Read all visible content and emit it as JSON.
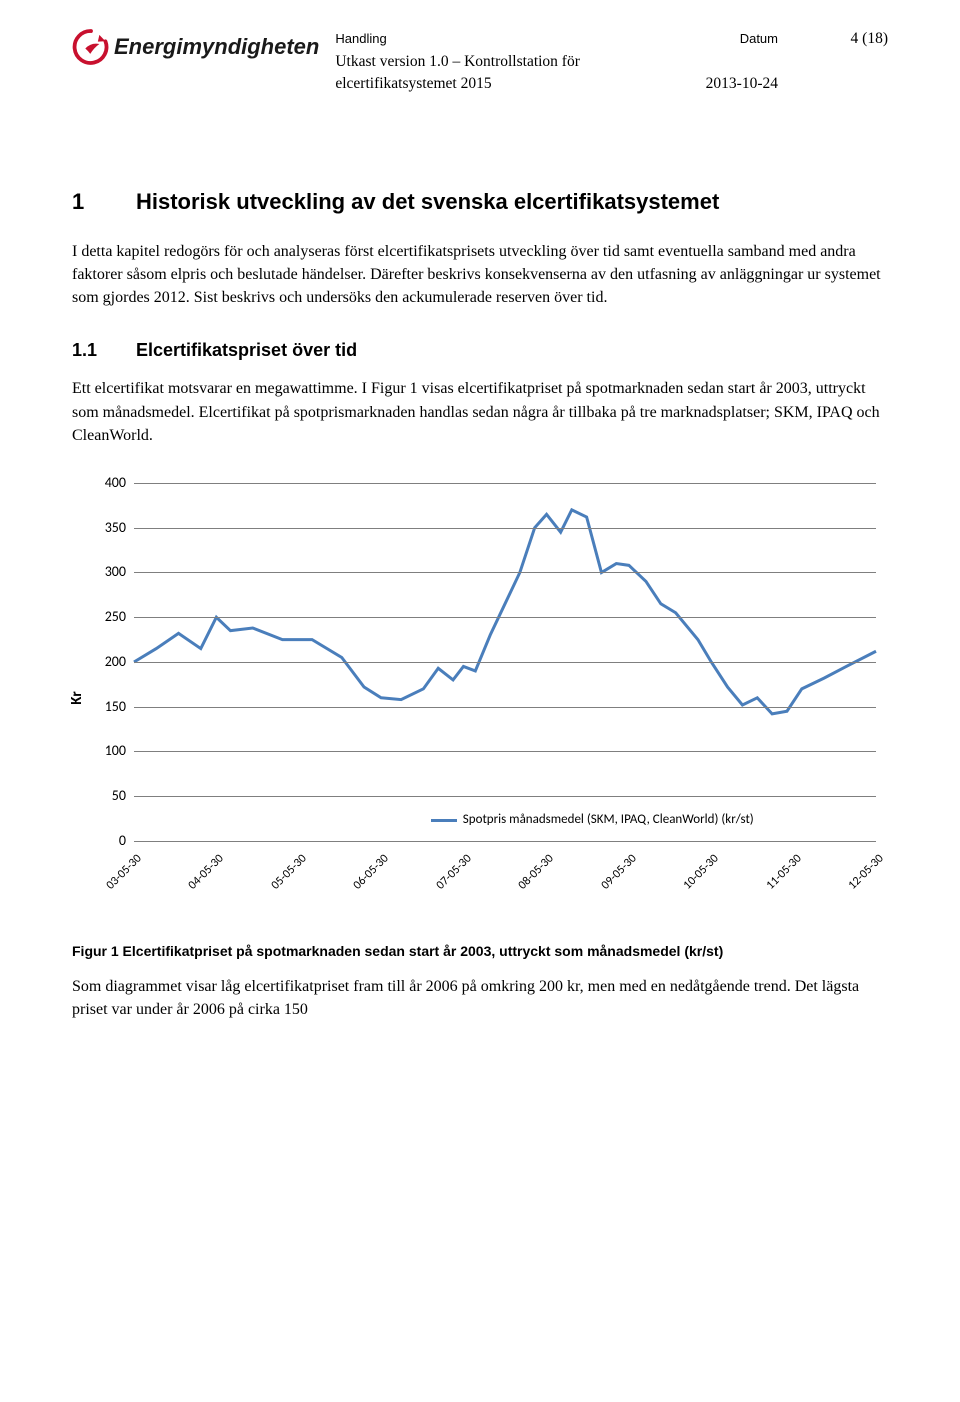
{
  "header": {
    "logo_text": "Energimyndigheten",
    "logo_color": "#c8102e",
    "handling_label": "Handling",
    "datum_label": "Datum",
    "title": "Utkast version 1.0 – Kontrollstation för",
    "subtitle": "elcertifikatsystemet 2015",
    "date": "2013-10-24",
    "page_num": "4 (18)"
  },
  "section1": {
    "num": "1",
    "title": "Historisk utveckling av det svenska elcertifikatsystemet",
    "p1": "I detta kapitel redogörs för och analyseras först elcertifikatsprisets utveckling över tid samt eventuella samband med andra faktorer såsom elpris och beslutade händelser. Därefter beskrivs konsekvenserna av den utfasning av anläggningar ur systemet som gjordes 2012. Sist beskrivs och undersöks den ackumulerade reserven över tid."
  },
  "section11": {
    "num": "1.1",
    "title": "Elcertifikatspriset över tid",
    "p1": "Ett elcertifikat motsvarar en megawattimme. I Figur 1 visas elcertifikatpriset på spotmarknaden sedan start år 2003, uttryckt som månadsmedel. Elcertifikat på spotprismarknaden handlas sedan några år tillbaka på tre marknadsplatser; SKM, IPAQ och CleanWorld."
  },
  "chart": {
    "type": "line",
    "ylabel": "Kr",
    "ylim": [
      0,
      400
    ],
    "ytick_step": 50,
    "yticks": [
      0,
      50,
      100,
      150,
      200,
      250,
      300,
      350,
      400
    ],
    "grid_color": "#7f7f7f",
    "grid_width": 1,
    "background_color": "#ffffff",
    "line_color": "#4a7ebb",
    "line_width": 3,
    "font_family": "Calibri, Arial, sans-serif",
    "y_label_fontsize": 14,
    "y_title_fontsize": 15,
    "x_label_fontsize": 12,
    "x_label_rotation": -45,
    "legend_text": "Spotpris månadsmedel (SKM, IPAQ, CleanWorld) (kr/st)",
    "legend_fontsize": 13,
    "x_categories": [
      "03-05-30",
      "04-05-30",
      "05-05-30",
      "06-05-30",
      "07-05-30",
      "08-05-30",
      "09-05-30",
      "10-05-30",
      "11-05-30",
      "12-05-30"
    ],
    "series": [
      {
        "x": 0.0,
        "y": 200
      },
      {
        "x": 0.03,
        "y": 215
      },
      {
        "x": 0.06,
        "y": 232
      },
      {
        "x": 0.09,
        "y": 215
      },
      {
        "x": 0.111,
        "y": 250
      },
      {
        "x": 0.13,
        "y": 235
      },
      {
        "x": 0.16,
        "y": 238
      },
      {
        "x": 0.2,
        "y": 225
      },
      {
        "x": 0.24,
        "y": 225
      },
      {
        "x": 0.28,
        "y": 205
      },
      {
        "x": 0.31,
        "y": 172
      },
      {
        "x": 0.333,
        "y": 160
      },
      {
        "x": 0.36,
        "y": 158
      },
      {
        "x": 0.39,
        "y": 170
      },
      {
        "x": 0.41,
        "y": 193
      },
      {
        "x": 0.43,
        "y": 180
      },
      {
        "x": 0.444,
        "y": 195
      },
      {
        "x": 0.46,
        "y": 190
      },
      {
        "x": 0.48,
        "y": 230
      },
      {
        "x": 0.5,
        "y": 265
      },
      {
        "x": 0.52,
        "y": 300
      },
      {
        "x": 0.54,
        "y": 350
      },
      {
        "x": 0.556,
        "y": 365
      },
      {
        "x": 0.575,
        "y": 345
      },
      {
        "x": 0.59,
        "y": 370
      },
      {
        "x": 0.61,
        "y": 362
      },
      {
        "x": 0.63,
        "y": 300
      },
      {
        "x": 0.65,
        "y": 310
      },
      {
        "x": 0.667,
        "y": 308
      },
      {
        "x": 0.69,
        "y": 290
      },
      {
        "x": 0.71,
        "y": 265
      },
      {
        "x": 0.73,
        "y": 255
      },
      {
        "x": 0.76,
        "y": 225
      },
      {
        "x": 0.778,
        "y": 200
      },
      {
        "x": 0.8,
        "y": 172
      },
      {
        "x": 0.82,
        "y": 152
      },
      {
        "x": 0.84,
        "y": 160
      },
      {
        "x": 0.86,
        "y": 142
      },
      {
        "x": 0.88,
        "y": 145
      },
      {
        "x": 0.9,
        "y": 170
      },
      {
        "x": 0.93,
        "y": 182
      },
      {
        "x": 0.96,
        "y": 195
      },
      {
        "x": 1.0,
        "y": 212
      }
    ]
  },
  "figure_caption": "Figur 1 Elcertifikatpriset på spotmarknaden sedan start år 2003, uttryckt som månadsmedel (kr/st)",
  "trailing_p": "Som diagrammet visar låg elcertifikatpriset fram till år 2006 på omkring 200 kr, men med en nedåtgående trend. Det lägsta priset var under år 2006 på cirka 150"
}
